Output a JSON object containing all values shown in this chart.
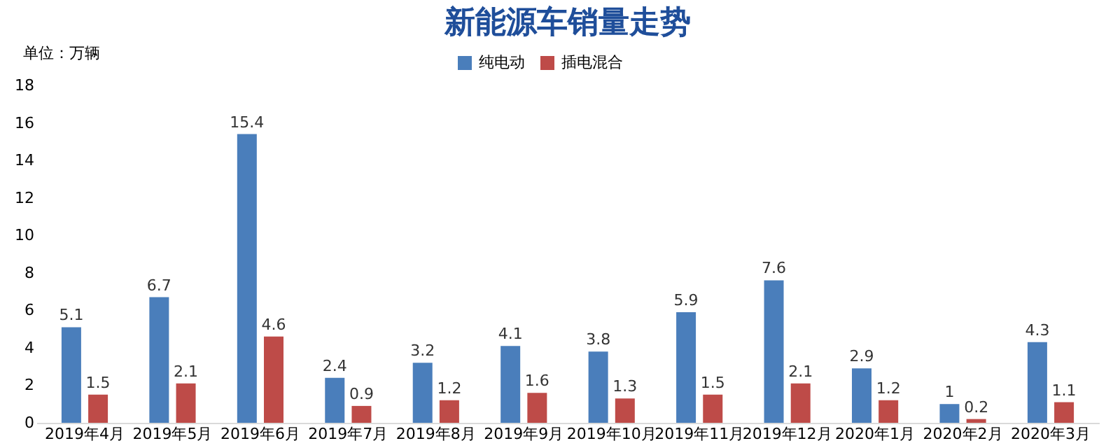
{
  "chart_data": {
    "type": "bar",
    "title": "新能源车销量走势",
    "ylabel": "单位：万辆",
    "categories": [
      "2019年4月",
      "2019年5月",
      "2019年6月",
      "2019年7月",
      "2019年8月",
      "2019年9月",
      "2019年10月",
      "2019年11月",
      "2019年12月",
      "2020年1月",
      "2020年2月",
      "2020年3月"
    ],
    "series": [
      {
        "name": "纯电动",
        "color": "#4a7ebb",
        "values": [
          5.1,
          6.7,
          15.4,
          2.4,
          3.2,
          4.1,
          3.8,
          5.9,
          7.6,
          2.9,
          1,
          4.3
        ]
      },
      {
        "name": "插电混合",
        "color": "#be4b48",
        "values": [
          1.5,
          2.1,
          4.6,
          0.9,
          1.2,
          1.6,
          1.3,
          1.5,
          2.1,
          1.2,
          0.2,
          1.1
        ]
      }
    ],
    "ylim": [
      0,
      18
    ],
    "yticks": [
      0,
      2,
      4,
      6,
      8,
      10,
      12,
      14,
      16,
      18
    ],
    "grid": false,
    "legend": "top",
    "data_labels": true
  }
}
